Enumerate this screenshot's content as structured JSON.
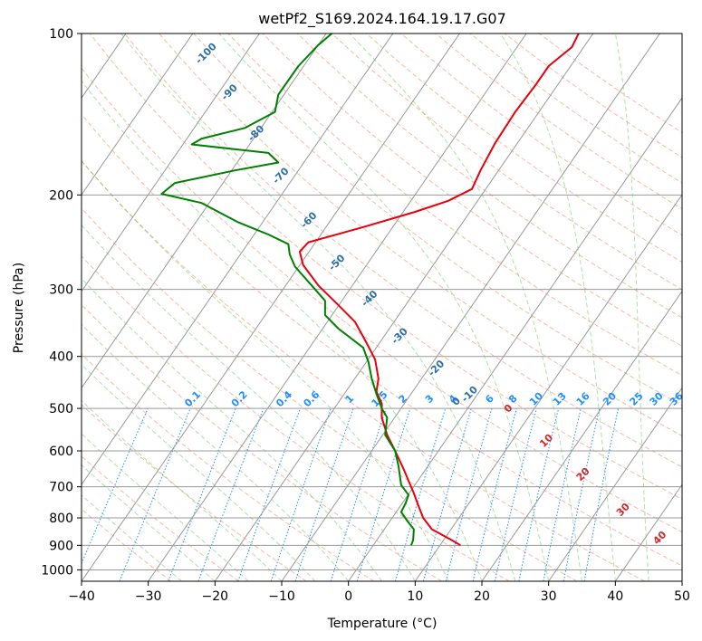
{
  "chart_data": {
    "type": "skew-t",
    "title": "wetPf2_S169.2024.164.19.17.G07",
    "xlabel": "Temperature (°C)",
    "ylabel": "Pressure (hPa)",
    "xlim": [
      -40,
      50
    ],
    "ylim": [
      1050,
      100
    ],
    "y_scale": "log",
    "grid": true,
    "x_ticks": [
      -40,
      -30,
      -20,
      -10,
      0,
      10,
      20,
      30,
      40,
      50
    ],
    "y_ticks": [
      1000,
      900,
      800,
      700,
      600,
      500,
      400,
      300,
      200,
      100
    ],
    "colors": {
      "temperature": "#e8000b",
      "dewpoint": "#008000",
      "dry_adiabat": "#f08060",
      "moist_adiabat": "#60c060",
      "mixing_ratio": "#1e90ff",
      "moist_label": "#2c6fa8",
      "dry_label": "#d62728",
      "isotherm": "#999999"
    },
    "series": [
      {
        "name": "Temperature",
        "points": [
          [
            16.8,
            900
          ],
          [
            15.5,
            880
          ],
          [
            12.5,
            840
          ],
          [
            11.2,
            800
          ],
          [
            10.5,
            760
          ],
          [
            9.8,
            720
          ],
          [
            8.3,
            650
          ],
          [
            7.0,
            600
          ],
          [
            5.8,
            560
          ],
          [
            5.0,
            520
          ],
          [
            5.0,
            490
          ],
          [
            4.2,
            465
          ],
          [
            4.5,
            440
          ],
          [
            4.0,
            405
          ],
          [
            2.6,
            375
          ],
          [
            1.0,
            345
          ],
          [
            -1.6,
            320
          ],
          [
            -4.5,
            295
          ],
          [
            -6.8,
            270
          ],
          [
            -7.3,
            255
          ],
          [
            -6.0,
            245
          ],
          [
            2.0,
            230
          ],
          [
            10.0,
            215
          ],
          [
            15.0,
            205
          ],
          [
            18.5,
            195
          ],
          [
            19.8,
            180
          ],
          [
            22.0,
            160
          ],
          [
            25.0,
            140
          ],
          [
            28.0,
            125
          ],
          [
            30.0,
            115
          ],
          [
            33.5,
            106
          ],
          [
            34.5,
            100
          ]
        ]
      },
      {
        "name": "Dewpoint",
        "points": [
          [
            9.4,
            900
          ],
          [
            9.7,
            880
          ],
          [
            9.8,
            840
          ],
          [
            8.8,
            810
          ],
          [
            7.9,
            780
          ],
          [
            8.6,
            750
          ],
          [
            9.0,
            725
          ],
          [
            7.9,
            695
          ],
          [
            7.5,
            640
          ],
          [
            7.0,
            600
          ],
          [
            5.5,
            560
          ],
          [
            5.8,
            520
          ],
          [
            5.0,
            500
          ],
          [
            4.2,
            470
          ],
          [
            3.5,
            440
          ],
          [
            3.0,
            410
          ],
          [
            2.2,
            385
          ],
          [
            -1.5,
            355
          ],
          [
            -3.5,
            335
          ],
          [
            -3.5,
            315
          ],
          [
            -5.5,
            295
          ],
          [
            -8.0,
            272
          ],
          [
            -8.8,
            258
          ],
          [
            -9.0,
            247
          ],
          [
            -12.0,
            237
          ],
          [
            -16.5,
            225
          ],
          [
            -22.0,
            207
          ],
          [
            -28.0,
            199
          ],
          [
            -26.0,
            190
          ],
          [
            -17.0,
            180
          ],
          [
            -10.5,
            174
          ],
          [
            -12.0,
            167
          ],
          [
            -23.5,
            161
          ],
          [
            -22.0,
            157
          ],
          [
            -15.5,
            150
          ],
          [
            -11.0,
            140
          ],
          [
            -10.5,
            130
          ],
          [
            -7.5,
            115
          ],
          [
            -4.5,
            105
          ],
          [
            -2.5,
            100
          ]
        ]
      }
    ],
    "dry_adiabat_labels": [
      {
        "text": "0",
        "t": 24.3,
        "p": 505
      },
      {
        "text": "10",
        "t": 30.0,
        "p": 580
      },
      {
        "text": "20",
        "t": 35.5,
        "p": 670
      },
      {
        "text": "30",
        "t": 41.5,
        "p": 780
      },
      {
        "text": "40",
        "t": 47.0,
        "p": 880
      }
    ],
    "moist_adiabat_labels": [
      {
        "text": "-100",
        "t": -21.0,
        "p": 110
      },
      {
        "text": "-90",
        "t": -17.5,
        "p": 130
      },
      {
        "text": "-80",
        "t": -13.5,
        "p": 155
      },
      {
        "text": "-70",
        "t": -9.8,
        "p": 186
      },
      {
        "text": "-60",
        "t": -5.6,
        "p": 225
      },
      {
        "text": "-50",
        "t": -1.4,
        "p": 270
      },
      {
        "text": "-40",
        "t": 3.5,
        "p": 315
      },
      {
        "text": "-30",
        "t": 8.0,
        "p": 370
      },
      {
        "text": "-20",
        "t": 13.5,
        "p": 425
      },
      {
        "text": "-10",
        "t": 18.5,
        "p": 475
      },
      {
        "text": "0",
        "t": 16.5,
        "p": 490
      }
    ],
    "mixing_ratio_labels": [
      {
        "text": "0.1",
        "t": -23.0,
        "p": 485
      },
      {
        "text": "0.2",
        "t": -16.0,
        "p": 485
      },
      {
        "text": "0.4",
        "t": -9.3,
        "p": 485
      },
      {
        "text": "0.6",
        "t": -5.2,
        "p": 485
      },
      {
        "text": "1",
        "t": 0.5,
        "p": 485
      },
      {
        "text": "1.5",
        "t": 5.0,
        "p": 485
      },
      {
        "text": "2",
        "t": 8.5,
        "p": 485
      },
      {
        "text": "3",
        "t": 12.5,
        "p": 485
      },
      {
        "text": "4",
        "t": 16.0,
        "p": 485
      },
      {
        "text": "6",
        "t": 21.5,
        "p": 485
      },
      {
        "text": "8",
        "t": 25.0,
        "p": 485
      },
      {
        "text": "10",
        "t": 28.5,
        "p": 485
      },
      {
        "text": "13",
        "t": 32.0,
        "p": 485
      },
      {
        "text": "16",
        "t": 35.5,
        "p": 485
      },
      {
        "text": "20",
        "t": 39.5,
        "p": 485
      },
      {
        "text": "25",
        "t": 43.5,
        "p": 485
      },
      {
        "text": "30",
        "t": 46.5,
        "p": 485
      },
      {
        "text": "36",
        "t": 49.5,
        "p": 485
      }
    ]
  }
}
